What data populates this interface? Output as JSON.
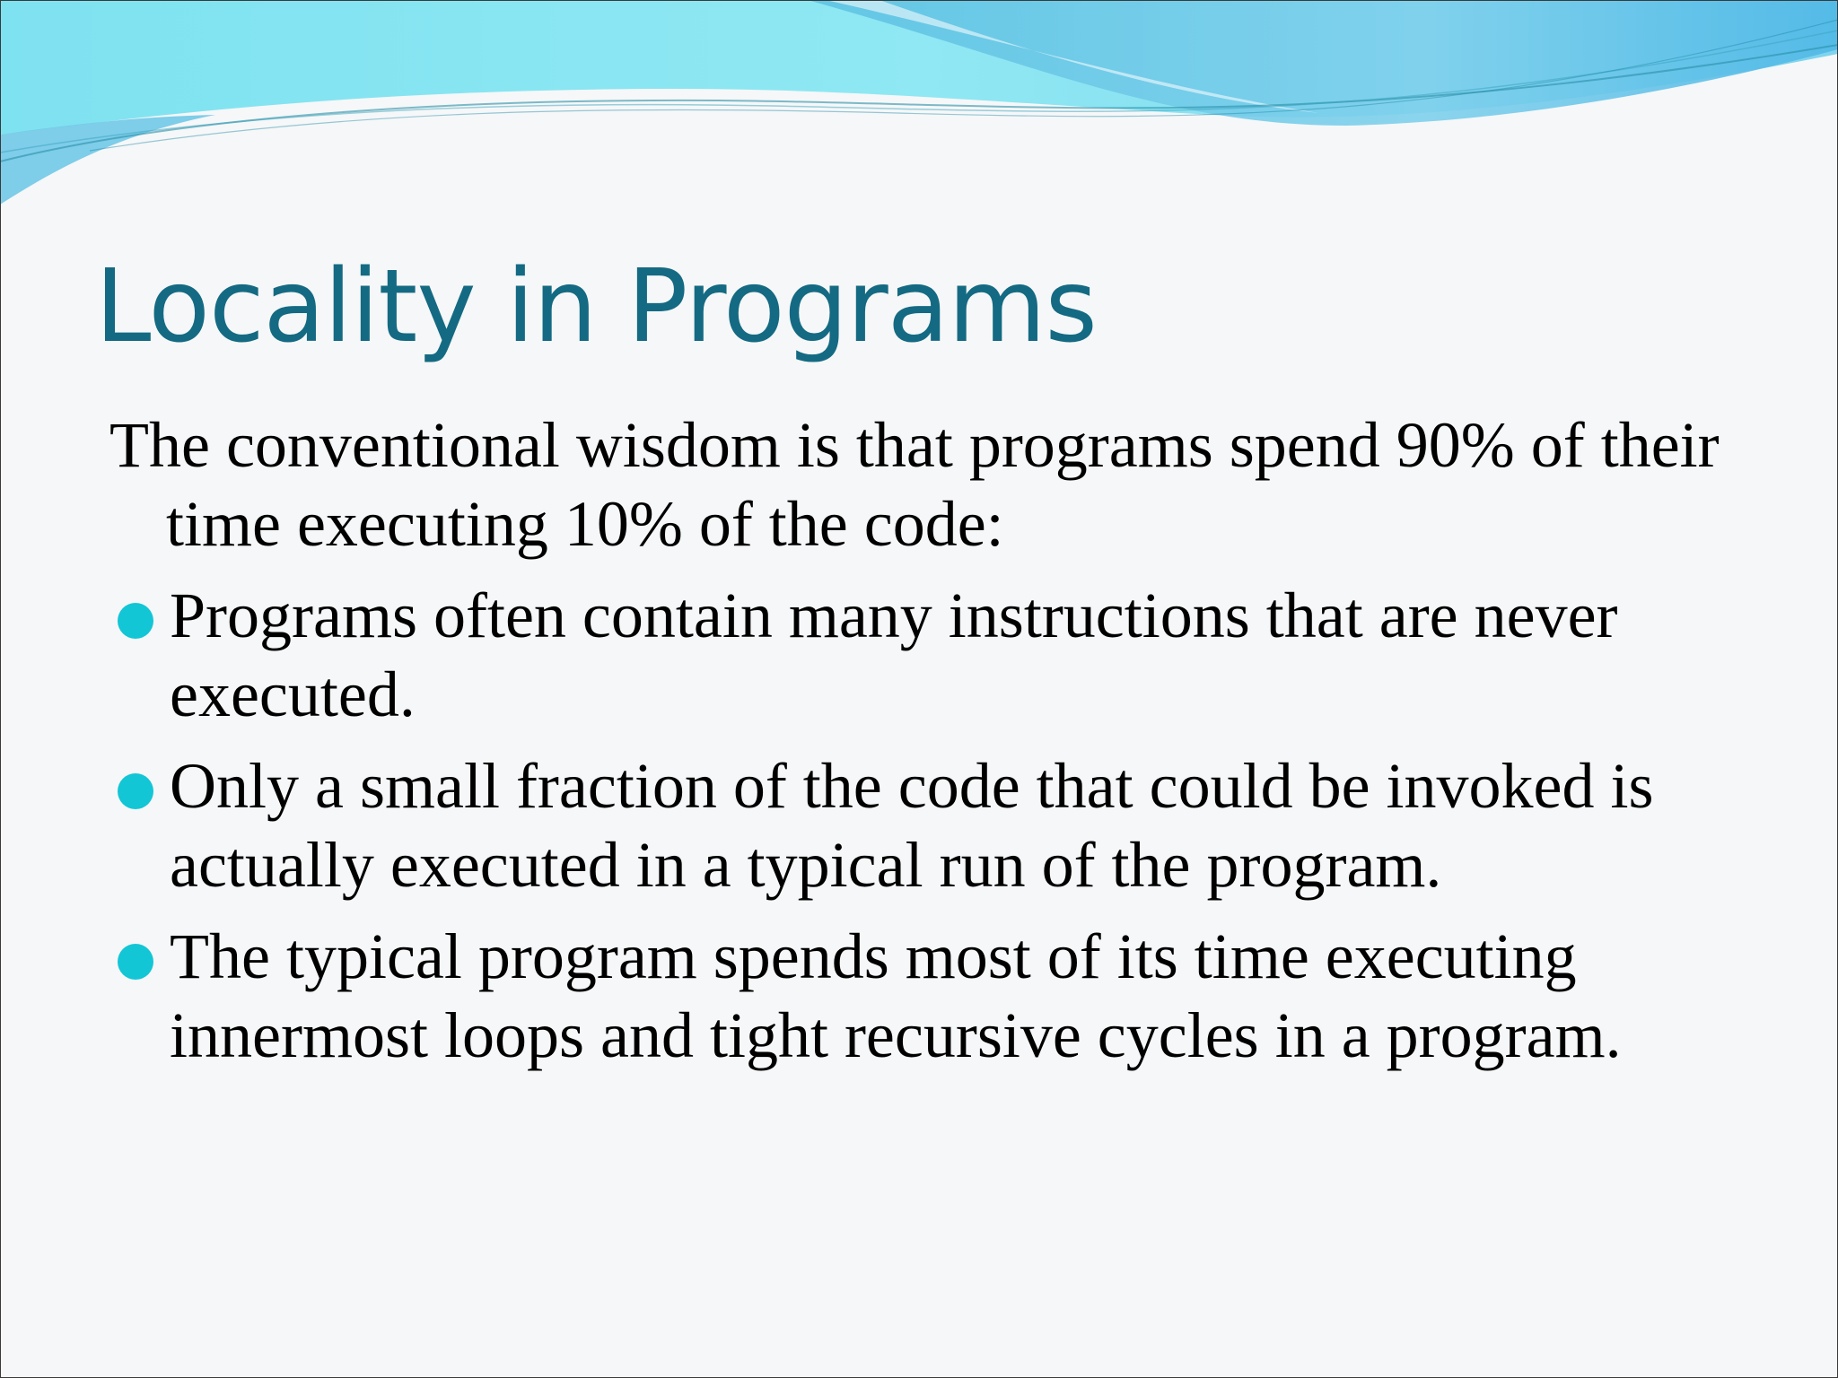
{
  "slide": {
    "title": "Locality in Programs",
    "intro": "The conventional wisdom is that programs spend 90% of their time executing 10% of the code:",
    "bullets": [
      "Programs often contain many instructions that are never executed.",
      "Only a small fraction of the code that could be invoked is actually executed in a typical run of the program.",
      "The typical program spends most of its time executing innermost loops and tight recursive cycles in a program."
    ]
  },
  "colors": {
    "title": "#146a82",
    "bullet": "#12c6d6",
    "wave_light": "#8fe6f2",
    "wave_mid": "#6fcfe8",
    "wave_dark": "#5ab8e4"
  }
}
